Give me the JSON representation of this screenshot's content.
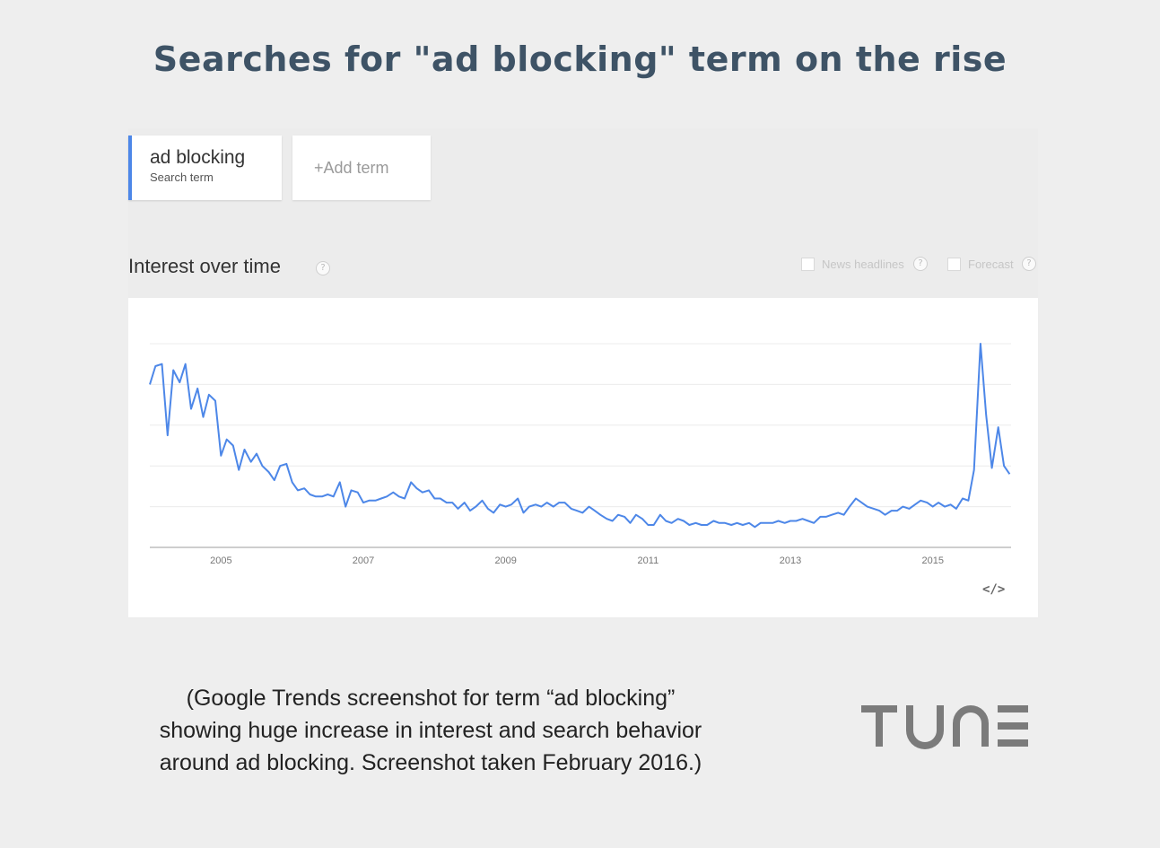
{
  "headline": "Searches for \"ad blocking\" term on the rise",
  "search_term": {
    "name": "ad blocking",
    "type": "Search term"
  },
  "add_term_label": "+Add term",
  "section_title": "Interest over time",
  "options": {
    "news_headlines": "News headlines",
    "forecast": "Forecast",
    "help_glyph": "?"
  },
  "embed_icon": "</>",
  "caption_lines": [
    "(Google Trends screenshot for term “ad blocking”",
    "showing huge increase in interest and search behavior",
    "around ad blocking. Screenshot taken February 2016.)"
  ],
  "logo_text": "TUNE",
  "colors": {
    "headline": "#3e5366",
    "series": "#4d87e8",
    "logo": "#7b7b7b"
  },
  "chart_data": {
    "type": "line",
    "title": "",
    "xlabel": "",
    "ylabel": "",
    "xlim": [
      2004.0,
      2016.1
    ],
    "ylim": [
      0,
      100
    ],
    "grid": true,
    "legend": "none",
    "x_ticks": [
      2005,
      2007,
      2009,
      2011,
      2013,
      2015
    ],
    "y_gridlines": [
      20,
      40,
      60,
      80,
      100
    ],
    "series": [
      {
        "points": [
          [
            2004.0,
            80
          ],
          [
            2004.08,
            89
          ],
          [
            2004.17,
            90
          ],
          [
            2004.25,
            55
          ],
          [
            2004.33,
            87
          ],
          [
            2004.42,
            81
          ],
          [
            2004.5,
            90
          ],
          [
            2004.58,
            68
          ],
          [
            2004.67,
            78
          ],
          [
            2004.75,
            64
          ],
          [
            2004.83,
            75
          ],
          [
            2004.92,
            72
          ],
          [
            2005.0,
            45
          ],
          [
            2005.08,
            53
          ],
          [
            2005.17,
            50
          ],
          [
            2005.25,
            38
          ],
          [
            2005.33,
            48
          ],
          [
            2005.42,
            42
          ],
          [
            2005.5,
            46
          ],
          [
            2005.58,
            40
          ],
          [
            2005.67,
            37
          ],
          [
            2005.75,
            33
          ],
          [
            2005.83,
            40
          ],
          [
            2005.92,
            41
          ],
          [
            2006.0,
            32
          ],
          [
            2006.08,
            28
          ],
          [
            2006.17,
            29
          ],
          [
            2006.25,
            26
          ],
          [
            2006.33,
            25
          ],
          [
            2006.42,
            25
          ],
          [
            2006.5,
            26
          ],
          [
            2006.58,
            25
          ],
          [
            2006.67,
            32
          ],
          [
            2006.75,
            20
          ],
          [
            2006.83,
            28
          ],
          [
            2006.92,
            27
          ],
          [
            2007.0,
            22
          ],
          [
            2007.08,
            23
          ],
          [
            2007.17,
            23
          ],
          [
            2007.25,
            24
          ],
          [
            2007.33,
            25
          ],
          [
            2007.42,
            27
          ],
          [
            2007.5,
            25
          ],
          [
            2007.58,
            24
          ],
          [
            2007.67,
            32
          ],
          [
            2007.75,
            29
          ],
          [
            2007.83,
            27
          ],
          [
            2007.92,
            28
          ],
          [
            2008.0,
            24
          ],
          [
            2008.08,
            24
          ],
          [
            2008.17,
            22
          ],
          [
            2008.25,
            22
          ],
          [
            2008.33,
            19
          ],
          [
            2008.42,
            22
          ],
          [
            2008.5,
            18
          ],
          [
            2008.58,
            20
          ],
          [
            2008.67,
            23
          ],
          [
            2008.75,
            19
          ],
          [
            2008.83,
            17
          ],
          [
            2008.92,
            21
          ],
          [
            2009.0,
            20
          ],
          [
            2009.08,
            21
          ],
          [
            2009.17,
            24
          ],
          [
            2009.25,
            17
          ],
          [
            2009.33,
            20
          ],
          [
            2009.42,
            21
          ],
          [
            2009.5,
            20
          ],
          [
            2009.58,
            22
          ],
          [
            2009.67,
            20
          ],
          [
            2009.75,
            22
          ],
          [
            2009.83,
            22
          ],
          [
            2009.92,
            19
          ],
          [
            2010.0,
            18
          ],
          [
            2010.08,
            17
          ],
          [
            2010.17,
            20
          ],
          [
            2010.25,
            18
          ],
          [
            2010.33,
            16
          ],
          [
            2010.42,
            14
          ],
          [
            2010.5,
            13
          ],
          [
            2010.58,
            16
          ],
          [
            2010.67,
            15
          ],
          [
            2010.75,
            12
          ],
          [
            2010.83,
            16
          ],
          [
            2010.92,
            14
          ],
          [
            2011.0,
            11
          ],
          [
            2011.08,
            11
          ],
          [
            2011.17,
            16
          ],
          [
            2011.25,
            13
          ],
          [
            2011.33,
            12
          ],
          [
            2011.42,
            14
          ],
          [
            2011.5,
            13
          ],
          [
            2011.58,
            11
          ],
          [
            2011.67,
            12
          ],
          [
            2011.75,
            11
          ],
          [
            2011.83,
            11
          ],
          [
            2011.92,
            13
          ],
          [
            2012.0,
            12
          ],
          [
            2012.08,
            12
          ],
          [
            2012.17,
            11
          ],
          [
            2012.25,
            12
          ],
          [
            2012.33,
            11
          ],
          [
            2012.42,
            12
          ],
          [
            2012.5,
            10
          ],
          [
            2012.58,
            12
          ],
          [
            2012.67,
            12
          ],
          [
            2012.75,
            12
          ],
          [
            2012.83,
            13
          ],
          [
            2012.92,
            12
          ],
          [
            2013.0,
            13
          ],
          [
            2013.08,
            13
          ],
          [
            2013.17,
            14
          ],
          [
            2013.25,
            13
          ],
          [
            2013.33,
            12
          ],
          [
            2013.42,
            15
          ],
          [
            2013.5,
            15
          ],
          [
            2013.58,
            16
          ],
          [
            2013.67,
            17
          ],
          [
            2013.75,
            16
          ],
          [
            2013.83,
            20
          ],
          [
            2013.92,
            24
          ],
          [
            2014.0,
            22
          ],
          [
            2014.08,
            20
          ],
          [
            2014.17,
            19
          ],
          [
            2014.25,
            18
          ],
          [
            2014.33,
            16
          ],
          [
            2014.42,
            18
          ],
          [
            2014.5,
            18
          ],
          [
            2014.58,
            20
          ],
          [
            2014.67,
            19
          ],
          [
            2014.75,
            21
          ],
          [
            2014.83,
            23
          ],
          [
            2014.92,
            22
          ],
          [
            2015.0,
            20
          ],
          [
            2015.08,
            22
          ],
          [
            2015.17,
            20
          ],
          [
            2015.25,
            21
          ],
          [
            2015.33,
            19
          ],
          [
            2015.42,
            24
          ],
          [
            2015.5,
            23
          ],
          [
            2015.58,
            38
          ],
          [
            2015.67,
            100
          ],
          [
            2015.75,
            65
          ],
          [
            2015.83,
            39
          ],
          [
            2015.92,
            59
          ],
          [
            2016.0,
            40
          ],
          [
            2016.08,
            36
          ]
        ]
      }
    ]
  }
}
